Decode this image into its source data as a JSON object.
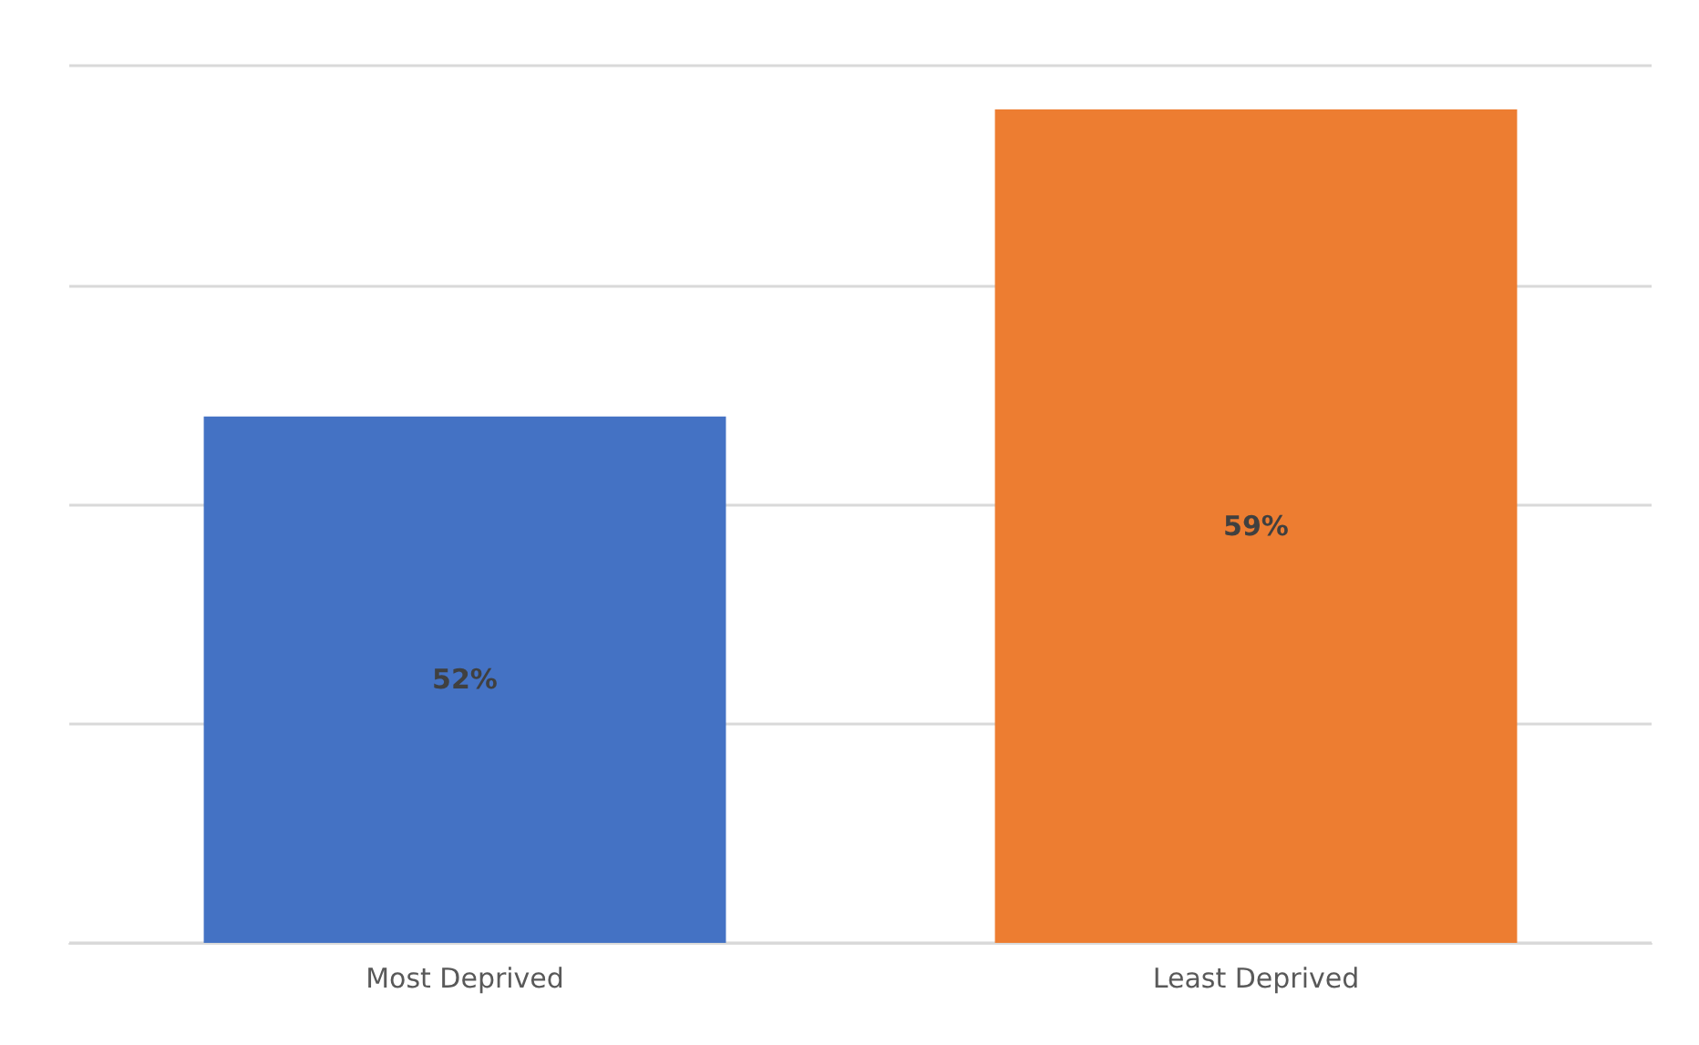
{
  "chart_data": {
    "type": "bar",
    "categories": [
      "Most Deprived",
      "Least Deprived"
    ],
    "values": [
      52,
      59
    ],
    "colors": [
      "#4472c4",
      "#ed7d31"
    ],
    "ylim": [
      40,
      60
    ],
    "yticks": [
      {
        "value": 40,
        "label": null
      },
      {
        "value": 45,
        "label": null
      },
      {
        "value": 50,
        "label": null
      },
      {
        "value": 55,
        "label": null
      },
      {
        "value": 60,
        "label": null
      }
    ],
    "value_labels": [
      "52%",
      "59%"
    ],
    "grid": "y",
    "tick_labels": "x"
  }
}
